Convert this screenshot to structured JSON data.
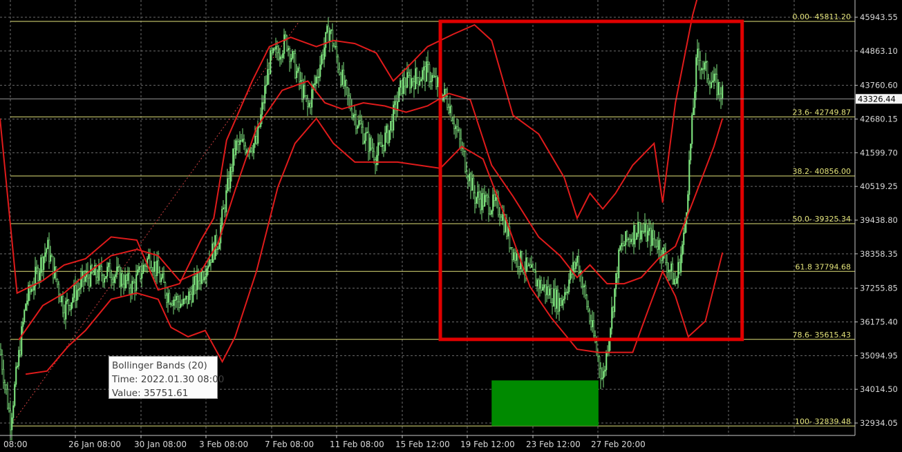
{
  "chart_data": {
    "type": "candlestick",
    "indicator": "Bollinger Bands (20)",
    "grid": true,
    "ylim": [
      32400,
      46500
    ],
    "price_ticks": [
      45943.55,
      44863.1,
      43760.6,
      42680.15,
      41599.7,
      40519.25,
      39438.8,
      38358.35,
      37255.85,
      36175.4,
      35094.95,
      34014.5,
      32934.05
    ],
    "current_price": "43326.44",
    "time_labels": [
      "08:00",
      "26 Jan 08:00",
      "30 Jan 08:00",
      "3 Feb 08:00",
      "7 Feb 08:00",
      "11 Feb 08:00",
      "15 Feb 12:00",
      "19 Feb 12:00",
      "23 Feb 12:00",
      "27 Feb 20:00"
    ],
    "fibonacci_levels": [
      {
        "label": "0.00- 45811.20",
        "value": 45811.2
      },
      {
        "label": "23.6- 42749.87",
        "value": 42749.87
      },
      {
        "label": "38.2- 40856.00",
        "value": 40856.0
      },
      {
        "label": "50.0- 39325.34",
        "value": 39325.34
      },
      {
        "label": "61.8 37794.68",
        "value": 37794.68
      },
      {
        "label": "78.6- 35615.43",
        "value": 35615.43
      },
      {
        "label": "100- 32839.48",
        "value": 32839.48
      }
    ],
    "price_path": [
      [
        0,
        35300
      ],
      [
        0.012,
        33000
      ],
      [
        0.03,
        36800
      ],
      [
        0.055,
        38600
      ],
      [
        0.075,
        36600
      ],
      [
        0.1,
        37600
      ],
      [
        0.13,
        37800
      ],
      [
        0.155,
        37300
      ],
      [
        0.175,
        38300
      ],
      [
        0.195,
        37100
      ],
      [
        0.215,
        36700
      ],
      [
        0.235,
        37700
      ],
      [
        0.255,
        38800
      ],
      [
        0.275,
        41800
      ],
      [
        0.3,
        41900
      ],
      [
        0.315,
        44500
      ],
      [
        0.335,
        45200
      ],
      [
        0.36,
        43000
      ],
      [
        0.385,
        45600
      ],
      [
        0.405,
        43400
      ],
      [
        0.425,
        42200
      ],
      [
        0.44,
        41500
      ],
      [
        0.455,
        42300
      ],
      [
        0.47,
        43800
      ],
      [
        0.5,
        44200
      ],
      [
        0.525,
        43200
      ],
      [
        0.555,
        40200
      ],
      [
        0.585,
        39800
      ],
      [
        0.6,
        38400
      ],
      [
        0.63,
        37400
      ],
      [
        0.655,
        36800
      ],
      [
        0.675,
        38200
      ],
      [
        0.688,
        36500
      ],
      [
        0.705,
        34300
      ],
      [
        0.725,
        38500
      ],
      [
        0.745,
        39200
      ],
      [
        0.77,
        38700
      ],
      [
        0.79,
        37400
      ],
      [
        0.8,
        38900
      ],
      [
        0.815,
        44700
      ],
      [
        0.83,
        44000
      ],
      [
        0.845,
        43500
      ]
    ],
    "bands": {
      "upper": [
        [
          0,
          42700
        ],
        [
          0.02,
          37100
        ],
        [
          0.05,
          37500
        ],
        [
          0.075,
          38000
        ],
        [
          0.1,
          38200
        ],
        [
          0.13,
          38900
        ],
        [
          0.16,
          38800
        ],
        [
          0.185,
          37200
        ],
        [
          0.21,
          37400
        ],
        [
          0.235,
          38800
        ],
        [
          0.25,
          39500
        ],
        [
          0.265,
          42000
        ],
        [
          0.295,
          43900
        ],
        [
          0.315,
          45000
        ],
        [
          0.34,
          45300
        ],
        [
          0.37,
          45000
        ],
        [
          0.39,
          45200
        ],
        [
          0.415,
          45100
        ],
        [
          0.44,
          44800
        ],
        [
          0.46,
          43900
        ],
        [
          0.475,
          44300
        ],
        [
          0.5,
          45000
        ],
        [
          0.53,
          45400
        ],
        [
          0.555,
          45700
        ],
        [
          0.575,
          45200
        ],
        [
          0.6,
          42800
        ],
        [
          0.63,
          42200
        ],
        [
          0.66,
          40800
        ],
        [
          0.675,
          39500
        ],
        [
          0.69,
          40300
        ],
        [
          0.705,
          39800
        ],
        [
          0.72,
          40300
        ],
        [
          0.74,
          41200
        ],
        [
          0.765,
          41900
        ],
        [
          0.775,
          40000
        ],
        [
          0.79,
          43200
        ],
        [
          0.81,
          46000
        ],
        [
          0.82,
          47000
        ]
      ],
      "middle": [
        [
          0.022,
          35600
        ],
        [
          0.05,
          36700
        ],
        [
          0.075,
          37100
        ],
        [
          0.1,
          37700
        ],
        [
          0.13,
          38300
        ],
        [
          0.16,
          38500
        ],
        [
          0.185,
          38300
        ],
        [
          0.21,
          37500
        ],
        [
          0.235,
          37800
        ],
        [
          0.255,
          38700
        ],
        [
          0.275,
          40400
        ],
        [
          0.3,
          42400
        ],
        [
          0.33,
          43600
        ],
        [
          0.36,
          43900
        ],
        [
          0.38,
          43200
        ],
        [
          0.4,
          43000
        ],
        [
          0.425,
          43200
        ],
        [
          0.45,
          43100
        ],
        [
          0.475,
          42900
        ],
        [
          0.5,
          43100
        ],
        [
          0.525,
          43500
        ],
        [
          0.55,
          43300
        ],
        [
          0.575,
          41200
        ],
        [
          0.6,
          40200
        ],
        [
          0.63,
          38900
        ],
        [
          0.655,
          38300
        ],
        [
          0.675,
          37600
        ],
        [
          0.69,
          38000
        ],
        [
          0.71,
          37400
        ],
        [
          0.73,
          37400
        ],
        [
          0.75,
          37600
        ],
        [
          0.77,
          38200
        ],
        [
          0.79,
          38600
        ],
        [
          0.81,
          40000
        ],
        [
          0.835,
          41800
        ],
        [
          0.845,
          42700
        ]
      ],
      "lower": [
        [
          0.03,
          34500
        ],
        [
          0.055,
          34600
        ],
        [
          0.08,
          35400
        ],
        [
          0.1,
          35900
        ],
        [
          0.13,
          36900
        ],
        [
          0.16,
          37100
        ],
        [
          0.185,
          36900
        ],
        [
          0.2,
          36000
        ],
        [
          0.22,
          35700
        ],
        [
          0.24,
          35900
        ],
        [
          0.26,
          34900
        ],
        [
          0.275,
          35700
        ],
        [
          0.3,
          37800
        ],
        [
          0.325,
          40500
        ],
        [
          0.345,
          41900
        ],
        [
          0.37,
          42700
        ],
        [
          0.39,
          41900
        ],
        [
          0.415,
          41300
        ],
        [
          0.44,
          41300
        ],
        [
          0.465,
          41300
        ],
        [
          0.49,
          41200
        ],
        [
          0.515,
          41100
        ],
        [
          0.54,
          41800
        ],
        [
          0.565,
          41400
        ],
        [
          0.59,
          39600
        ],
        [
          0.62,
          37300
        ],
        [
          0.645,
          36300
        ],
        [
          0.675,
          35300
        ],
        [
          0.7,
          35200
        ],
        [
          0.72,
          35200
        ],
        [
          0.74,
          35200
        ],
        [
          0.76,
          36700
        ],
        [
          0.775,
          37800
        ],
        [
          0.79,
          37000
        ],
        [
          0.805,
          35700
        ],
        [
          0.825,
          36200
        ],
        [
          0.845,
          38400
        ]
      ]
    },
    "annotations": {
      "red_box": {
        "x_from": 0.515,
        "x_to": 0.868,
        "y_from": 45811.2,
        "y_to": 35615.43
      },
      "green_box": {
        "x_from": 0.575,
        "x_to": 0.7,
        "y_from": 34300,
        "y_to": 32839.48
      }
    },
    "colors": {
      "candle": "#7fe57f",
      "band": "#e01b1b",
      "fib": "#e3e37a",
      "box": "#e00000",
      "zone": "#008a00",
      "grid": "#6e6e6e",
      "axis_text": "#d8d8d8"
    }
  },
  "tooltip": {
    "title": "Bollinger Bands (20)",
    "time": "Time: 2022.01.30 08:00",
    "value": "Value: 35751.61"
  }
}
